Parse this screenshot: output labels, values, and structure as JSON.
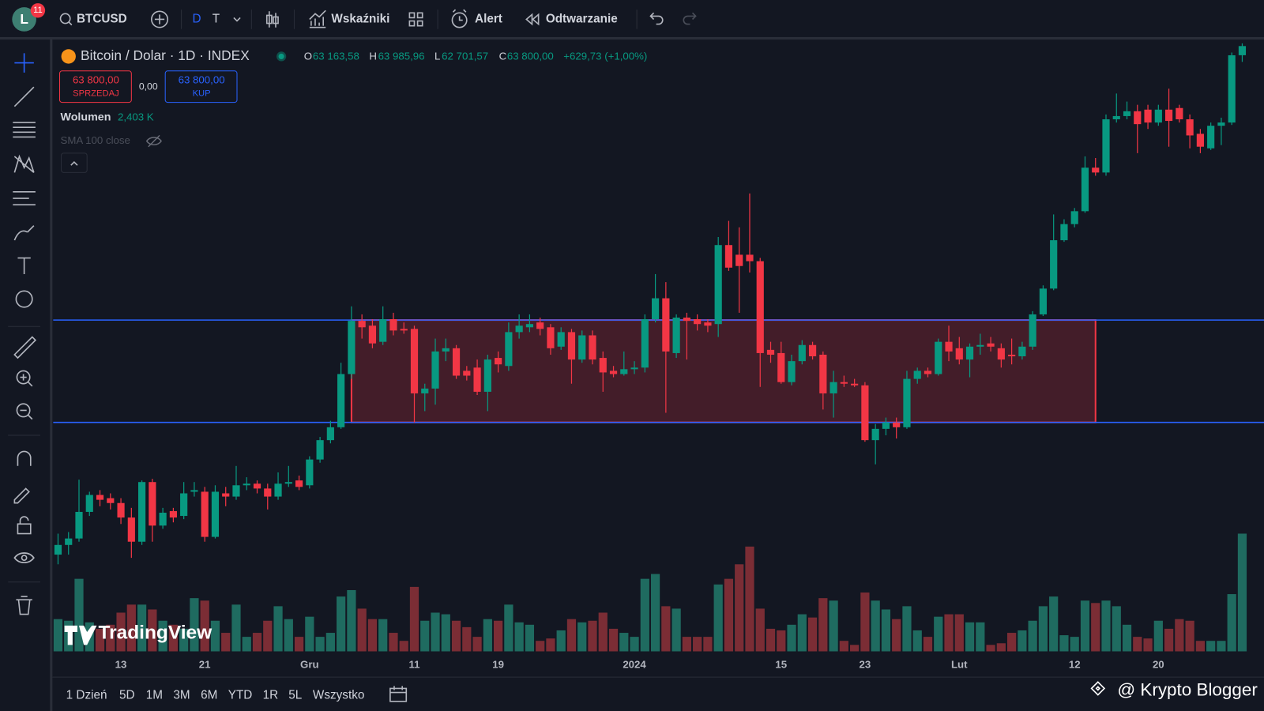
{
  "toolbar": {
    "avatar": "L",
    "badge": "11",
    "symbol": "BTCUSD",
    "interval_d": "D",
    "interval_t": "T",
    "indicators": "Wskaźniki",
    "alert": "Alert",
    "replay": "Odtwarzanie"
  },
  "legend": {
    "title": "Bitcoin / Dolar · 1D · INDEX",
    "o_key": "O",
    "o": "63 163,58",
    "h_key": "H",
    "h": "63 985,96",
    "l_key": "L",
    "l": "62 701,57",
    "c_key": "C",
    "c": "63 800,00",
    "change": "+629,73 (+1,00%)"
  },
  "trade": {
    "sell_price": "63 800,00",
    "sell": "SPRZEDAJ",
    "spread": "0,00",
    "buy_price": "63 800,00",
    "buy": "KUP"
  },
  "indicators": {
    "volume_name": "Wolumen",
    "volume_value": "2,403 K",
    "sma": "SMA 100 close"
  },
  "ranges": [
    "1 Dzień",
    "5D",
    "1M",
    "3M",
    "6M",
    "YTD",
    "1R",
    "5L",
    "Wszystko"
  ],
  "watermark": "TradingView",
  "credit": "@ Krypto Blogger",
  "chart_data": {
    "type": "candlestick",
    "categories": [
      null,
      null,
      null,
      null,
      null,
      null,
      "13",
      null,
      null,
      null,
      null,
      null,
      null,
      null,
      "21",
      null,
      null,
      null,
      null,
      null,
      null,
      null,
      null,
      null,
      "Gru",
      null,
      null,
      null,
      null,
      null,
      null,
      null,
      null,
      null,
      "11",
      null,
      null,
      null,
      null,
      null,
      null,
      null,
      "19",
      null,
      null,
      null,
      null,
      null,
      null,
      null,
      null,
      null,
      null,
      null,
      null,
      "2024",
      null,
      null,
      null,
      null,
      null,
      null,
      null,
      null,
      null,
      null,
      null,
      null,
      null,
      "15",
      null,
      null,
      null,
      null,
      null,
      null,
      null,
      "23",
      null,
      null,
      null,
      null,
      null,
      null,
      null,
      null,
      "Lut",
      null,
      null,
      null,
      null,
      null,
      null,
      null,
      null,
      null,
      null,
      "12",
      null,
      null,
      null,
      null,
      null,
      null,
      null,
      "20",
      null,
      null,
      null,
      null,
      null,
      null,
      null,
      null
    ],
    "open": [
      28472,
      29144,
      29592,
      31440,
      32616,
      32392,
      32056,
      31048,
      29368,
      33512,
      30488,
      31496,
      31160,
      32840,
      32840,
      29704,
      32728,
      32504,
      33288,
      33400,
      33064,
      32504,
      33400,
      33624,
      33288,
      35080,
      36424,
      37320,
      41016,
      44712,
      44376,
      43256,
      44824,
      44152,
      44152,
      39672,
      40008,
      42584,
      42808,
      41240,
      41464,
      39784,
      42136,
      41576,
      43928,
      44264,
      44600,
      44264,
      42920,
      43928,
      42024,
      43704,
      42136,
      41240,
      41016,
      41352,
      41464,
      44824,
      46280,
      42472,
      44936,
      44824,
      44600,
      44488,
      49976,
      49304,
      49304,
      48856,
      42696,
      42472,
      40456,
      41912,
      43032,
      42360,
      39672,
      40456,
      40344,
      40232,
      36424,
      37208,
      37656,
      37320,
      40680,
      41240,
      41016,
      43256,
      42808,
      42024,
      42920,
      43144,
      42808,
      42360,
      42248,
      42920,
      45160,
      46952,
      50312,
      51432,
      52328,
      55352,
      55016,
      58712,
      58936,
      59272,
      59384,
      58488,
      59384,
      59496,
      58712,
      57704,
      56696,
      58264,
      58488,
      63163.58
    ],
    "high": [
      29928,
      30040,
      33680,
      32840,
      32952,
      32728,
      32392,
      31720,
      33624,
      33736,
      31720,
      31720,
      33512,
      33512,
      33176,
      33288,
      33176,
      34632,
      33848,
      33624,
      33400,
      34184,
      34632,
      33960,
      35304,
      36648,
      37768,
      41800,
      45720,
      45160,
      44824,
      45720,
      45272,
      44600,
      44376,
      40344,
      43480,
      43480,
      43032,
      41576,
      42024,
      42360,
      42584,
      44600,
      45160,
      45160,
      44936,
      44488,
      44264,
      44152,
      44040,
      44040,
      42584,
      41576,
      42584,
      41912,
      45160,
      47960,
      47400,
      45160,
      45272,
      45160,
      44824,
      50536,
      51656,
      51208,
      53560,
      49080,
      43256,
      43256,
      42360,
      43368,
      43256,
      42584,
      41240,
      40904,
      40680,
      40456,
      37544,
      37992,
      37992,
      41240,
      41464,
      41464,
      43480,
      44376,
      43592,
      43144,
      43816,
      43592,
      43144,
      43480,
      43256,
      45384,
      47176,
      52104,
      51768,
      52552,
      56136,
      56024,
      59048,
      60504,
      59944,
      59720,
      59720,
      59720,
      60840,
      59720,
      59048,
      58040,
      58488,
      58824,
      63350,
      63985.96
    ],
    "low": [
      27800,
      28472,
      29368,
      31160,
      31832,
      31608,
      30600,
      28248,
      29144,
      29368,
      30264,
      30712,
      30936,
      32504,
      29368,
      29592,
      31832,
      32280,
      32952,
      32728,
      31608,
      32280,
      33176,
      32952,
      33064,
      34856,
      36200,
      37208,
      40680,
      43480,
      42808,
      43032,
      43704,
      43816,
      37656,
      38440,
      38888,
      41912,
      40680,
      40568,
      39560,
      38440,
      41128,
      41240,
      43480,
      43928,
      43704,
      42360,
      42696,
      40344,
      41800,
      41688,
      39784,
      40792,
      40904,
      41016,
      41128,
      44600,
      38328,
      42136,
      42024,
      44040,
      43928,
      43592,
      48184,
      45272,
      48072,
      40120,
      41800,
      40344,
      40232,
      41688,
      42024,
      38552,
      37992,
      40120,
      40120,
      36312,
      34744,
      36760,
      36536,
      37208,
      40344,
      40792,
      40904,
      41912,
      41688,
      40792,
      42360,
      42584,
      41464,
      41688,
      42024,
      42696,
      45048,
      46840,
      50200,
      51208,
      52216,
      54792,
      54792,
      58488,
      58712,
      56360,
      58040,
      58264,
      56808,
      58488,
      56696,
      56360,
      56584,
      56920,
      58320,
      62701.57
    ],
    "close": [
      29144,
      29592,
      31440,
      32616,
      32280,
      32056,
      31048,
      29368,
      33512,
      30488,
      31384,
      31048,
      32728,
      32952,
      29704,
      32840,
      32504,
      33288,
      33400,
      33064,
      32504,
      33400,
      33512,
      33176,
      35080,
      36424,
      37320,
      41016,
      44712,
      44264,
      43144,
      44824,
      44040,
      44040,
      39672,
      40008,
      42584,
      42808,
      40904,
      40904,
      39784,
      42024,
      41688,
      43928,
      44376,
      44488,
      44152,
      42808,
      43928,
      42024,
      43704,
      42024,
      41128,
      41016,
      41352,
      41464,
      44824,
      46280,
      42584,
      44936,
      44712,
      44488,
      44376,
      49976,
      48408,
      48520,
      48856,
      42472,
      42360,
      40456,
      41912,
      43032,
      42248,
      39672,
      40456,
      40344,
      40232,
      36424,
      37208,
      37656,
      37320,
      40680,
      41240,
      41016,
      43256,
      42584,
      42024,
      42920,
      43032,
      42920,
      42024,
      42248,
      42920,
      45160,
      46952,
      50312,
      51432,
      52328,
      55352,
      55016,
      58712,
      58936,
      59272,
      58376,
      58488,
      59384,
      58600,
      58712,
      57592,
      56808,
      58264,
      58488,
      63160,
      63800
    ],
    "volume": [
      658,
      625,
      1481,
      592,
      461,
      543,
      790,
      954,
      954,
      855,
      625,
      543,
      461,
      1086,
      1036,
      625,
      378,
      954,
      296,
      378,
      625,
      921,
      658,
      296,
      707,
      296,
      378,
      1119,
      1250,
      872,
      658,
      658,
      378,
      214,
      1316,
      625,
      790,
      757,
      625,
      494,
      296,
      658,
      625,
      954,
      592,
      543,
      214,
      263,
      428,
      658,
      592,
      625,
      790,
      461,
      378,
      296,
      1481,
      1579,
      921,
      872,
      296,
      296,
      296,
      1365,
      1481,
      1777,
      2139,
      872,
      461,
      428,
      543,
      757,
      691,
      1086,
      1036,
      214,
      132,
      1201,
      1036,
      855,
      658,
      921,
      428,
      296,
      707,
      757,
      757,
      592,
      592,
      132,
      165,
      378,
      428,
      625,
      921,
      1119,
      329,
      296,
      1036,
      987,
      1036,
      921,
      543,
      296,
      263,
      625,
      461,
      658,
      625,
      214,
      214,
      214,
      1168,
      2403
    ],
    "ylim": [
      27800,
      64312
    ],
    "volume_lim": [
      0,
      2600
    ],
    "up_color": "#089981",
    "down_color": "#f23645",
    "volume_up_color": "#1f6b60",
    "volume_down_color": "#7b2d35",
    "levels": [
      44768,
      37656
    ],
    "level_color": "#2962ff",
    "zone": {
      "start": 28,
      "end": 99,
      "low": 37656,
      "high": 44768,
      "color": "#f23645"
    }
  }
}
